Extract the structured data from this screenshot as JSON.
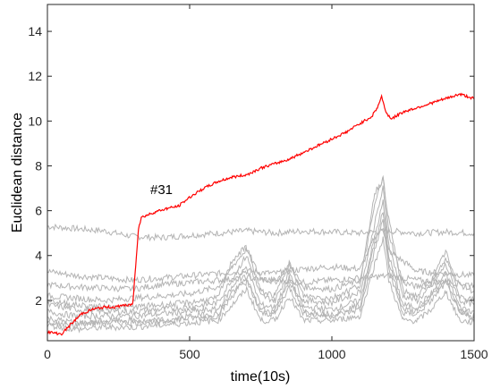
{
  "chart_data": {
    "type": "line",
    "xlabel": "time(10s)",
    "ylabel": "Euclidean distance",
    "xlim": [
      0,
      1500
    ],
    "ylim": [
      0.2,
      15.2
    ],
    "xticks": [
      0,
      500,
      1000,
      1500
    ],
    "yticks": [
      2,
      4,
      6,
      8,
      10,
      12,
      14
    ],
    "grid": false,
    "annotation": {
      "text": "#31",
      "x": 360,
      "y": 7.0
    },
    "colors": {
      "highlight": "#ff0000",
      "background_series": "#b4b4b4",
      "axis": "#262626"
    },
    "highlight_series": {
      "x": [
        0,
        20,
        50,
        80,
        120,
        160,
        200,
        240,
        255,
        265,
        280,
        300,
        310,
        320,
        330,
        340,
        350,
        380,
        420,
        460,
        500,
        550,
        600,
        650,
        700,
        750,
        800,
        850,
        900,
        950,
        1000,
        1050,
        1100,
        1140,
        1160,
        1175,
        1185,
        1195,
        1210,
        1250,
        1300,
        1350,
        1400,
        1450,
        1500
      ],
      "y": [
        0.6,
        0.55,
        0.5,
        0.9,
        1.4,
        1.6,
        1.7,
        1.7,
        1.75,
        1.8,
        1.75,
        1.85,
        3.5,
        5.2,
        5.7,
        5.75,
        5.8,
        5.95,
        6.1,
        6.2,
        6.6,
        7.0,
        7.3,
        7.5,
        7.6,
        7.9,
        8.1,
        8.3,
        8.6,
        8.9,
        9.2,
        9.5,
        9.9,
        10.2,
        10.6,
        11.1,
        10.6,
        10.3,
        10.1,
        10.4,
        10.6,
        10.8,
        11.0,
        11.2,
        11.0
      ]
    },
    "background_series": [
      {
        "x": [
          0,
          100,
          200,
          300,
          400,
          500,
          600,
          700,
          800,
          900,
          1000,
          1100,
          1200,
          1300,
          1400,
          1500
        ],
        "y": [
          5.3,
          5.2,
          5.1,
          4.85,
          4.8,
          4.9,
          5.0,
          5.1,
          5.0,
          5.1,
          5.05,
          5.0,
          5.1,
          5.0,
          5.05,
          5.0
        ]
      },
      {
        "x": [
          0,
          100,
          200,
          300,
          400,
          500,
          600,
          700,
          800,
          900,
          1000,
          1100,
          1150,
          1180,
          1200,
          1300,
          1400,
          1500
        ],
        "y": [
          3.3,
          3.1,
          3.0,
          2.9,
          3.0,
          3.1,
          3.2,
          3.3,
          3.2,
          3.4,
          3.5,
          3.4,
          4.8,
          5.2,
          4.2,
          3.3,
          3.2,
          3.1
        ]
      },
      {
        "x": [
          0,
          100,
          200,
          300,
          400,
          500,
          600,
          700,
          800,
          900,
          1000,
          1100,
          1200,
          1300,
          1400,
          1500
        ],
        "y": [
          2.7,
          2.6,
          2.55,
          2.5,
          2.7,
          2.8,
          2.9,
          3.0,
          2.9,
          2.8,
          2.9,
          3.0,
          3.1,
          2.9,
          2.8,
          2.7
        ]
      },
      {
        "x": [
          0,
          100,
          200,
          300,
          400,
          500,
          600,
          650,
          700,
          750,
          800,
          850,
          900,
          1000,
          1100,
          1150,
          1180,
          1200,
          1250,
          1300,
          1350,
          1400,
          1450,
          1500
        ],
        "y": [
          2.2,
          2.1,
          2.0,
          2.1,
          2.2,
          2.3,
          2.6,
          3.5,
          4.3,
          3.0,
          2.8,
          3.6,
          2.6,
          2.5,
          2.9,
          6.2,
          7.6,
          5.0,
          2.8,
          2.6,
          2.9,
          3.8,
          2.7,
          2.4
        ]
      },
      {
        "x": [
          0,
          100,
          200,
          300,
          400,
          500,
          600,
          650,
          700,
          750,
          800,
          850,
          900,
          1000,
          1100,
          1150,
          1180,
          1200,
          1250,
          1300,
          1350,
          1400,
          1450,
          1500
        ],
        "y": [
          1.8,
          1.6,
          1.5,
          1.5,
          1.6,
          1.7,
          1.9,
          3.0,
          4.0,
          2.2,
          2.0,
          3.3,
          2.0,
          1.9,
          2.4,
          5.4,
          7.0,
          4.5,
          2.2,
          2.0,
          2.6,
          3.6,
          2.0,
          1.8
        ]
      },
      {
        "x": [
          0,
          100,
          200,
          300,
          400,
          500,
          600,
          650,
          700,
          750,
          800,
          850,
          900,
          1000,
          1100,
          1150,
          1180,
          1200,
          1250,
          1300,
          1350,
          1400,
          1450,
          1500
        ],
        "y": [
          1.5,
          1.3,
          1.3,
          1.3,
          1.4,
          1.5,
          1.6,
          2.6,
          3.5,
          1.8,
          1.7,
          3.0,
          1.7,
          1.6,
          2.0,
          4.8,
          6.4,
          4.0,
          1.8,
          1.7,
          2.3,
          3.2,
          1.7,
          1.5
        ]
      },
      {
        "x": [
          0,
          100,
          200,
          300,
          400,
          500,
          600,
          650,
          700,
          750,
          800,
          850,
          900,
          1000,
          1100,
          1150,
          1180,
          1200,
          1250,
          1300,
          1350,
          1400,
          1450,
          1500
        ],
        "y": [
          1.2,
          1.0,
          1.0,
          1.0,
          1.1,
          1.2,
          1.3,
          2.2,
          3.0,
          1.4,
          1.4,
          2.6,
          1.4,
          1.3,
          1.6,
          4.2,
          5.6,
          3.4,
          1.4,
          1.4,
          2.0,
          2.8,
          1.4,
          1.2
        ]
      },
      {
        "x": [
          0,
          100,
          200,
          300,
          400,
          500,
          600,
          650,
          700,
          750,
          800,
          850,
          900,
          1000,
          1100,
          1150,
          1180,
          1200,
          1250,
          1300,
          1350,
          1400,
          1450,
          1500
        ],
        "y": [
          0.9,
          0.7,
          0.8,
          0.8,
          0.9,
          1.0,
          1.1,
          1.8,
          2.5,
          1.1,
          1.1,
          2.2,
          1.1,
          1.1,
          1.3,
          3.6,
          4.8,
          2.9,
          1.1,
          1.1,
          1.6,
          2.4,
          1.1,
          1.0
        ]
      },
      {
        "x": [
          0,
          100,
          200,
          300,
          400,
          500,
          600,
          650,
          700,
          750,
          800,
          850,
          900,
          1000,
          1100,
          1150,
          1180,
          1200,
          1250,
          1300,
          1350,
          1400,
          1450,
          1500
        ],
        "y": [
          2.0,
          1.8,
          1.7,
          1.7,
          1.8,
          1.9,
          2.1,
          3.8,
          4.4,
          2.4,
          2.2,
          3.7,
          2.2,
          2.1,
          2.7,
          6.8,
          7.4,
          5.6,
          2.4,
          2.2,
          2.8,
          4.2,
          2.2,
          2.0
        ]
      },
      {
        "x": [
          0,
          100,
          200,
          300,
          400,
          500,
          600,
          650,
          700,
          750,
          800,
          850,
          900,
          1000,
          1100,
          1150,
          1180,
          1200,
          1250,
          1300,
          1350,
          1400,
          1450,
          1500
        ],
        "y": [
          1.0,
          0.9,
          1.1,
          1.1,
          1.0,
          1.3,
          1.4,
          2.4,
          2.8,
          1.6,
          1.5,
          2.9,
          1.5,
          1.4,
          1.8,
          4.5,
          6.0,
          3.7,
          1.6,
          1.5,
          2.2,
          3.0,
          1.5,
          1.3
        ]
      }
    ]
  }
}
